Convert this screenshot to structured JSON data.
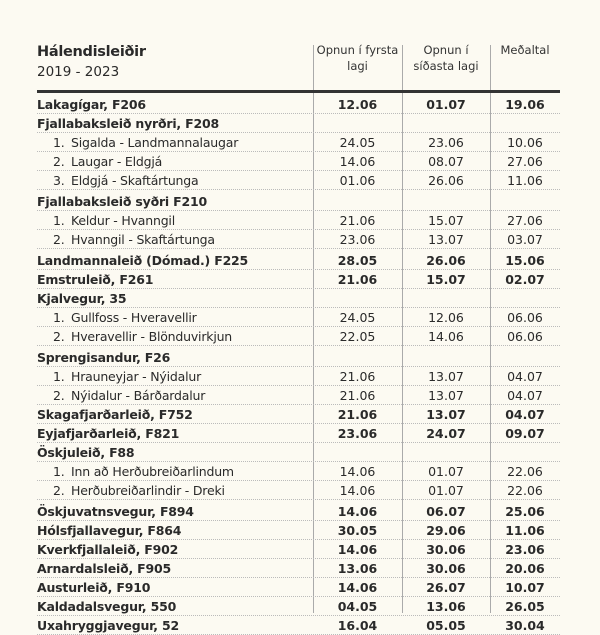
{
  "header": {
    "title": "Hálendisleiðir",
    "years": "2019 - 2023",
    "col1": "Opnun í fyrsta lagi",
    "col2": "Opnun í síðasta lagi",
    "col3": "Meðaltal"
  },
  "rows": [
    {
      "label": "Lakagígar, F206",
      "v": [
        "12.06",
        "01.07",
        "19.06"
      ],
      "type": "b"
    },
    {
      "label": "Fjallabaksleið nyrðri, F208",
      "v": [
        "",
        "",
        ""
      ],
      "type": "b"
    },
    {
      "num": "1.",
      "label": "Sigalda - Landmannalaugar",
      "v": [
        "24.05",
        "23.06",
        "10.06"
      ],
      "type": "sub"
    },
    {
      "num": "2.",
      "label": "Laugar - Eldgjá",
      "v": [
        "14.06",
        "08.07",
        "27.06"
      ],
      "type": "sub"
    },
    {
      "num": "3.",
      "label": "Eldgjá - Skaftártunga",
      "v": [
        "01.06",
        "26.06",
        "11.06"
      ],
      "type": "sub"
    },
    {
      "label": "Fjallabaksleið syðri F210",
      "v": [
        "",
        "",
        ""
      ],
      "type": "b gap"
    },
    {
      "num": "1.",
      "label": "Keldur - Hvanngil",
      "v": [
        "21.06",
        "15.07",
        "27.06"
      ],
      "type": "sub"
    },
    {
      "num": "2.",
      "label": "Hvanngil - Skaftártunga",
      "v": [
        "23.06",
        "13.07",
        "03.07"
      ],
      "type": "sub"
    },
    {
      "label": "Landmannaleið (Dómad.) F225",
      "v": [
        "28.05",
        "26.06",
        "15.06"
      ],
      "type": "b gap"
    },
    {
      "label": "Emstruleið, F261",
      "v": [
        "21.06",
        "15.07",
        "02.07"
      ],
      "type": "b"
    },
    {
      "label": "Kjalvegur, 35",
      "v": [
        "",
        "",
        ""
      ],
      "type": "b"
    },
    {
      "num": "1.",
      "label": "Gullfoss - Hveravellir",
      "v": [
        "24.05",
        "12.06",
        "06.06"
      ],
      "type": "sub"
    },
    {
      "num": "2.",
      "label": "Hveravellir - Blönduvirkjun",
      "v": [
        "22.05",
        "14.06",
        "06.06"
      ],
      "type": "sub"
    },
    {
      "label": "Sprengisandur, F26",
      "v": [
        "",
        "",
        ""
      ],
      "type": "b gap"
    },
    {
      "num": "1.",
      "label": "Hrauneyjar - Nýidalur",
      "v": [
        "21.06",
        "13.07",
        "04.07"
      ],
      "type": "sub"
    },
    {
      "num": "2.",
      "label": "Nýidalur - Bárðardalur",
      "v": [
        "21.06",
        "13.07",
        "04.07"
      ],
      "type": "sub"
    },
    {
      "label": "Skagafjarðarleið, F752",
      "v": [
        "21.06",
        "13.07",
        "04.07"
      ],
      "type": "b"
    },
    {
      "label": "Eyjafjarðarleið, F821",
      "v": [
        "23.06",
        "24.07",
        "09.07"
      ],
      "type": "b"
    },
    {
      "label": "Öskjuleið, F88",
      "v": [
        "",
        "",
        ""
      ],
      "type": "b"
    },
    {
      "num": "1.",
      "label": "Inn að Herðubreiðarlindum",
      "v": [
        "14.06",
        "01.07",
        "22.06"
      ],
      "type": "sub"
    },
    {
      "num": "2.",
      "label": "Herðubreiðarlindir -  Dreki",
      "v": [
        "14.06",
        "01.07",
        "22.06"
      ],
      "type": "sub"
    },
    {
      "label": "Öskjuvatnsvegur, F894",
      "v": [
        "14.06",
        "06.07",
        "25.06"
      ],
      "type": "b gap"
    },
    {
      "label": "Hólsfjallavegur, F864",
      "v": [
        "30.05",
        "29.06",
        "11.06"
      ],
      "type": "b"
    },
    {
      "label": "Kverkfjallaleið, F902",
      "v": [
        "14.06",
        "30.06",
        "23.06"
      ],
      "type": "b"
    },
    {
      "label": "Arnardalsleið, F905",
      "v": [
        "13.06",
        "30.06",
        "20.06"
      ],
      "type": "b"
    },
    {
      "label": "Austurleið, F910",
      "v": [
        "14.06",
        "26.07",
        "10.07"
      ],
      "type": "b"
    },
    {
      "label": "Kaldadalsvegur, 550",
      "v": [
        "04.05",
        "13.06",
        "26.05"
      ],
      "type": "b"
    },
    {
      "label": "Uxahryggjavegur, 52",
      "v": [
        "16.04",
        "05.05",
        "30.04"
      ],
      "type": "b"
    }
  ]
}
